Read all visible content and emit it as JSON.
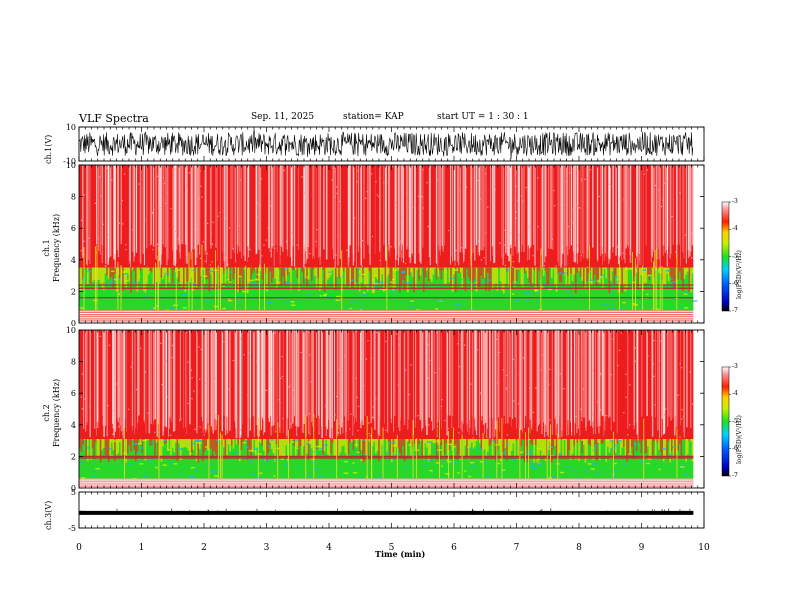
{
  "header": {
    "title": "VLF Spectra",
    "date": "Sep. 11, 2025",
    "station": "station= KAP",
    "start": "start  UT =   1 : 30 : 1"
  },
  "colors": {
    "waveform": "#000000",
    "spec_high": "#ee1c1c",
    "spec_mid": "#27d82a",
    "spec_low": "#1fb5ee",
    "band_line": "#b03030"
  },
  "chart_data": [
    {
      "type": "line",
      "name": "ch1-waveform",
      "ylabel": "ch.1(V)",
      "ylim": [
        -10,
        10
      ],
      "yticks": [
        "10",
        "-10"
      ],
      "xlim": [
        0,
        10
      ]
    },
    {
      "type": "heatmap",
      "name": "ch1-spectrogram",
      "ylabel": "ch.1\nFrequency (kHz)",
      "ylim": [
        0,
        10
      ],
      "yticks": [
        "0",
        "2",
        "4",
        "6",
        "8",
        "10"
      ],
      "xlim": [
        0,
        10
      ],
      "data_end_min": 9.83,
      "green_band_khz": [
        0.8,
        3.5
      ],
      "red_lines_khz": [
        2.2,
        2.4,
        1.6
      ],
      "colorbar": {
        "label": "log(PSD)(V²/Hz)",
        "range": [
          -7,
          -3
        ],
        "ticks": [
          "-3",
          "-4",
          "-5",
          "-6",
          "-7"
        ]
      }
    },
    {
      "type": "heatmap",
      "name": "ch2-spectrogram",
      "ylabel": "ch.2\nFrequency (kHz)",
      "ylim": [
        0,
        10
      ],
      "yticks": [
        "0",
        "2",
        "4",
        "6",
        "8",
        "10"
      ],
      "xlim": [
        0,
        10
      ],
      "data_end_min": 9.83,
      "green_band_khz": [
        0.6,
        3.1
      ],
      "red_lines_khz": [
        2.0,
        1.9
      ],
      "colorbar": {
        "label": "log(PSD)(V²/Hz)",
        "range": [
          -7,
          -3
        ],
        "ticks": [
          "-3",
          "-4",
          "-5",
          "-6",
          "-7"
        ]
      }
    },
    {
      "type": "line",
      "name": "ch3-waveform",
      "ylabel": "ch.3(V)",
      "ylim": [
        -5,
        5
      ],
      "yticks": [
        "5",
        "-5"
      ],
      "xlim": [
        0,
        10
      ],
      "baseline_v": -0.8
    }
  ],
  "xaxis": {
    "label": "Time (min)",
    "ticks": [
      "0",
      "1",
      "2",
      "3",
      "4",
      "5",
      "6",
      "7",
      "8",
      "9",
      "10"
    ]
  }
}
